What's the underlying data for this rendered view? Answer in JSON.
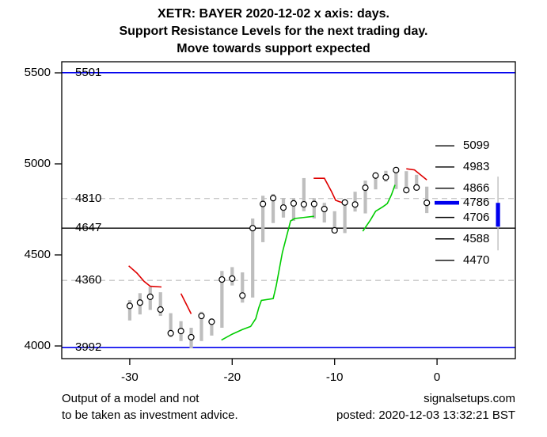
{
  "colors": {
    "blue": "#0000EE",
    "red": "#DF0000",
    "green": "#00CD00",
    "bar_gray": "#BEBEBE",
    "dashed_gray": "#C8C8C8",
    "black": "#000000"
  },
  "footer": {
    "disclaimer_line1": "Output of a model and not",
    "disclaimer_line2": "to be taken as investment advice.",
    "site": "signalsetups.com",
    "posted": "posted: 2020-12-03 13:32:21 BST"
  },
  "chart_data": {
    "type": "hlc-bar",
    "title": {
      "line1": "XETR: BAYER 2020-12-02 x axis: days.",
      "line2": "Support Resistance Levels for the next trading day.",
      "line3": "Move towards support expected"
    },
    "x_axis": {
      "unit": "days",
      "range": [
        -36.6,
        7.7
      ],
      "ticks": [
        {
          "value": -30,
          "label": "-30"
        },
        {
          "value": -20,
          "label": "-20"
        },
        {
          "value": -10,
          "label": "-10"
        },
        {
          "value": 0,
          "label": "0"
        }
      ]
    },
    "y_axis": {
      "range": [
        3930,
        5560
      ],
      "ticks": [
        {
          "value": 5500,
          "label": "5500"
        },
        {
          "value": 5000,
          "label": "5000"
        },
        {
          "value": 4500,
          "label": "4500"
        },
        {
          "value": 4000,
          "label": "4000"
        }
      ]
    },
    "levels_left": [
      {
        "value": 5501,
        "label": "5501",
        "style": "blue-solid"
      },
      {
        "value": 4810,
        "label": "4810",
        "style": "gray-dashed"
      },
      {
        "value": 4647,
        "label": "4647",
        "style": "black-solid"
      },
      {
        "value": 4360,
        "label": "4360",
        "style": "gray-dashed"
      },
      {
        "value": 3992,
        "label": "3992",
        "style": "blue-solid"
      }
    ],
    "levels_right": [
      {
        "value": 5099,
        "label": "5099",
        "highlight": false
      },
      {
        "value": 4983,
        "label": "4983",
        "highlight": false
      },
      {
        "value": 4866,
        "label": "4866",
        "highlight": false
      },
      {
        "value": 4786,
        "label": "4786",
        "highlight": true
      },
      {
        "value": 4706,
        "label": "4706",
        "highlight": false
      },
      {
        "value": 4588,
        "label": "4588",
        "highlight": false
      },
      {
        "value": 4470,
        "label": "4470",
        "highlight": false
      }
    ],
    "bars": [
      {
        "day": -30,
        "high": 4252,
        "low": 4140,
        "close": 4220
      },
      {
        "day": -29,
        "high": 4290,
        "low": 4173,
        "close": 4238
      },
      {
        "day": -28,
        "high": 4325,
        "low": 4198,
        "close": 4270
      },
      {
        "day": -27,
        "high": 4295,
        "low": 4165,
        "close": 4200
      },
      {
        "day": -26,
        "high": 4180,
        "low": 4048,
        "close": 4070
      },
      {
        "day": -25,
        "high": 4136,
        "low": 4027,
        "close": 4082
      },
      {
        "day": -24,
        "high": 4100,
        "low": 3988,
        "close": 4048
      },
      {
        "day": -23,
        "high": 4188,
        "low": 4027,
        "close": 4165
      },
      {
        "day": -22,
        "high": 4150,
        "low": 4057,
        "close": 4133
      },
      {
        "day": -21,
        "high": 4412,
        "low": 4100,
        "close": 4365
      },
      {
        "day": -20,
        "high": 4433,
        "low": 4332,
        "close": 4370
      },
      {
        "day": -19,
        "high": 4404,
        "low": 4238,
        "close": 4277
      },
      {
        "day": -18,
        "high": 4700,
        "low": 4266,
        "close": 4647
      },
      {
        "day": -17,
        "high": 4825,
        "low": 4570,
        "close": 4780
      },
      {
        "day": -16,
        "high": 4835,
        "low": 4675,
        "close": 4812
      },
      {
        "day": -15,
        "high": 4813,
        "low": 4705,
        "close": 4760
      },
      {
        "day": -14,
        "high": 4810,
        "low": 4687,
        "close": 4783
      },
      {
        "day": -13,
        "high": 4922,
        "low": 4740,
        "close": 4778
      },
      {
        "day": -12,
        "high": 4812,
        "low": 4700,
        "close": 4780
      },
      {
        "day": -11,
        "high": 4786,
        "low": 4678,
        "close": 4752
      },
      {
        "day": -10,
        "high": 4740,
        "low": 4620,
        "close": 4635
      },
      {
        "day": -9,
        "high": 4796,
        "low": 4620,
        "close": 4788
      },
      {
        "day": -8,
        "high": 4847,
        "low": 4738,
        "close": 4777
      },
      {
        "day": -7,
        "high": 4908,
        "low": 4728,
        "close": 4869
      },
      {
        "day": -6,
        "high": 4948,
        "low": 4860,
        "close": 4936
      },
      {
        "day": -5,
        "high": 4962,
        "low": 4902,
        "close": 4926
      },
      {
        "day": -4,
        "high": 4977,
        "low": 4862,
        "close": 4966
      },
      {
        "day": -3,
        "high": 4960,
        "low": 4845,
        "close": 4856
      },
      {
        "day": -2,
        "high": 4940,
        "low": 4853,
        "close": 4870
      },
      {
        "day": -1,
        "high": 4875,
        "low": 4730,
        "close": 4786
      }
    ],
    "resistance_lines": [
      [
        [
          -30.1,
          4440
        ],
        [
          -29.3,
          4400
        ],
        [
          -28.6,
          4355
        ],
        [
          -28.0,
          4328
        ],
        [
          -26.9,
          4324
        ]
      ],
      [
        [
          -25.0,
          4288
        ],
        [
          -24.0,
          4176
        ]
      ],
      [
        [
          -12.05,
          4921
        ],
        [
          -11.0,
          4921
        ],
        [
          -10.3,
          4848
        ],
        [
          -9.9,
          4800
        ],
        [
          -9.2,
          4786
        ]
      ],
      [
        [
          -3.0,
          4973
        ],
        [
          -2.2,
          4967
        ],
        [
          -1.0,
          4912
        ]
      ]
    ],
    "support_lines": [
      [
        [
          -21.05,
          4032
        ],
        [
          -20.0,
          4065
        ],
        [
          -19.0,
          4090
        ],
        [
          -18.2,
          4107
        ],
        [
          -17.7,
          4150
        ],
        [
          -17.4,
          4210
        ],
        [
          -17.15,
          4250
        ],
        [
          -16.0,
          4260
        ],
        [
          -15.7,
          4330
        ],
        [
          -15.1,
          4513
        ],
        [
          -14.3,
          4687
        ],
        [
          -13.9,
          4700
        ],
        [
          -12.0,
          4712
        ]
      ],
      [
        [
          -7.25,
          4630
        ],
        [
          -6.5,
          4692
        ],
        [
          -6.0,
          4740
        ],
        [
          -5.3,
          4764
        ],
        [
          -4.85,
          4782
        ],
        [
          -4.45,
          4830
        ],
        [
          -4.1,
          4885
        ]
      ]
    ],
    "forecast": {
      "day": 5.95,
      "whisker_high": 4930,
      "whisker_low": 4525,
      "expected_move_from": 4786,
      "expected_move_to": 4655
    }
  }
}
